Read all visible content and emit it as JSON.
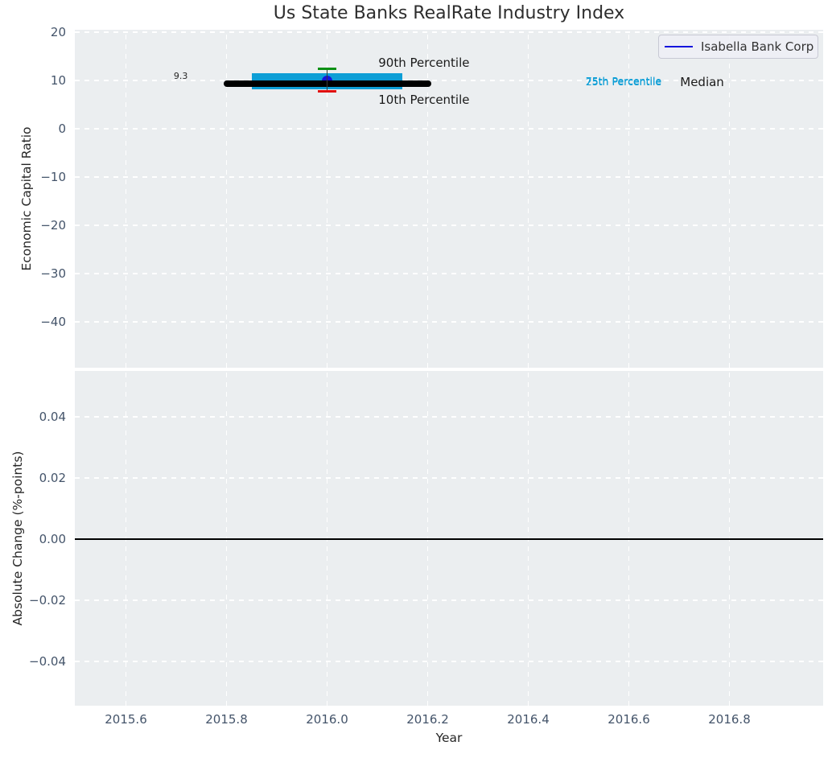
{
  "colors": {
    "axes_bg": "#ebeef0",
    "grid": "#ffffff",
    "tick_label": "#44546a",
    "title_text": "#2e2e2e",
    "iqr_bar": "#0d9ed6",
    "median_line": "#000000",
    "p90_cap": "#0a9014",
    "p10_cap": "#e01010",
    "whisker": "#3a3a3a",
    "company_line": "#1515dd",
    "zero_line": "#000000"
  },
  "chart_data": {
    "type": "line",
    "title": "Us State Banks RealRate Industry Index",
    "xlabel": "Year",
    "xlim": [
      2015.5,
      2016.99
    ],
    "grid": "dashed-white-on-gray",
    "xticks": [
      {
        "label": "2015.6",
        "value": 2015.6
      },
      {
        "label": "2015.8",
        "value": 2015.8
      },
      {
        "label": "2016.0",
        "value": 2016.0
      },
      {
        "label": "2016.2",
        "value": 2016.2
      },
      {
        "label": "2016.4",
        "value": 2016.4
      },
      {
        "label": "2016.6",
        "value": 2016.6
      },
      {
        "label": "2016.8",
        "value": 2016.8
      }
    ],
    "subplots": [
      {
        "ylabel": "Economic Capital Ratio",
        "ylim": [
          -49.5,
          20.5
        ],
        "yticks": [
          {
            "label": "20",
            "value": 20
          },
          {
            "label": "10",
            "value": 10
          },
          {
            "label": "0",
            "value": 0
          },
          {
            "label": "−10",
            "value": -10
          },
          {
            "label": "−20",
            "value": -20
          },
          {
            "label": "−30",
            "value": -30
          },
          {
            "label": "−40",
            "value": -40
          }
        ],
        "legend": {
          "position": "upper right",
          "entries": [
            {
              "label": "Isabella Bank Corp",
              "color": "#1515dd"
            }
          ]
        },
        "series": [
          {
            "name": "Isabella Bank Corp",
            "marker": "circle",
            "color": "#1515dd",
            "x": [
              2016.0
            ],
            "y": [
              9.9
            ]
          }
        ],
        "industry_percentiles": {
          "year": 2016.0,
          "median": 9.3,
          "median_xspan": [
            2015.8,
            2016.2
          ],
          "p25": 8.2,
          "p75": 11.5,
          "iqr_xspan": [
            2015.85,
            2016.15
          ],
          "p10": 7.8,
          "p90": 12.5,
          "whisker_cap_halfwidth_years": 0.018
        },
        "annotations": [
          {
            "id": "median-value-label",
            "text": "9.3",
            "x": 2015.695,
            "y": 12.0,
            "color": "#262626",
            "size": 11
          },
          {
            "id": "p90-label",
            "text": "90th Percentile",
            "x": 2016.102,
            "y": 15.2,
            "color": "#1a1a1a",
            "size": 15
          },
          {
            "id": "p10-label",
            "text": "10th Percentile",
            "x": 2016.102,
            "y": 7.5,
            "color": "#1a1a1a",
            "size": 15
          },
          {
            "id": "p75-label",
            "text": "75th Percentile",
            "x": 2016.514,
            "y": 11.2,
            "color": "#0d9ed6",
            "size": 12.5
          },
          {
            "id": "p25-label",
            "text": "25th Percentile",
            "x": 2016.514,
            "y": 10.95,
            "color": "#0d9ed6",
            "size": 12.5
          },
          {
            "id": "median-label",
            "text": "Median",
            "x": 2016.702,
            "y": 11.2,
            "color": "#1a1a1a",
            "size": 15
          }
        ]
      },
      {
        "ylabel": "Absolute Change (%-points)",
        "ylim": [
          -0.055,
          0.055
        ],
        "yticks": [
          {
            "label": "0.04",
            "value": 0.04
          },
          {
            "label": "0.02",
            "value": 0.02
          },
          {
            "label": "0.00",
            "value": 0.0
          },
          {
            "label": "−0.02",
            "value": -0.02
          },
          {
            "label": "−0.04",
            "value": -0.04
          }
        ],
        "zero_line_y": 0.0
      }
    ]
  }
}
